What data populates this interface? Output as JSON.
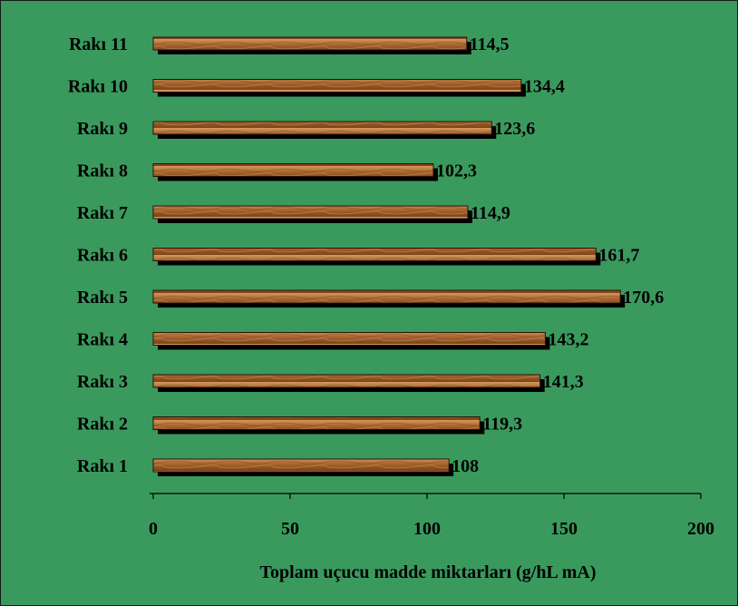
{
  "chart_data": {
    "type": "bar",
    "orientation": "horizontal",
    "categories": [
      "Rakı 11",
      "Rakı 10",
      "Rakı 9",
      "Rakı 8",
      "Rakı 7",
      "Rakı 6",
      "Rakı 5",
      "Rakı 4",
      "Rakı 3",
      "Rakı 2",
      "Rakı 1"
    ],
    "values": [
      114.5,
      134.4,
      123.6,
      102.3,
      114.9,
      161.7,
      170.6,
      143.2,
      141.3,
      119.3,
      108
    ],
    "value_labels": [
      "114,5",
      "134,4",
      "123,6",
      "102,3",
      "114,9",
      "161,7",
      "170,6",
      "143,2",
      "141,3",
      "119,3",
      "108"
    ],
    "title": "",
    "xlabel": "Toplam uçucu madde miktarları (g/hL mA)",
    "ylabel": "",
    "xlim": [
      0,
      200
    ],
    "xticks": [
      0,
      50,
      100,
      150,
      200
    ],
    "xtick_labels": [
      "0",
      "50",
      "100",
      "150",
      "200"
    ],
    "grid": false,
    "legend": "none",
    "colors": {
      "background": "#3a9a5e",
      "bar_light": "#c98a4e",
      "bar_mid": "#9a5a2a",
      "bar_dark": "#6b3812",
      "bar_shadow": "#000000",
      "axis": "#000000"
    }
  }
}
